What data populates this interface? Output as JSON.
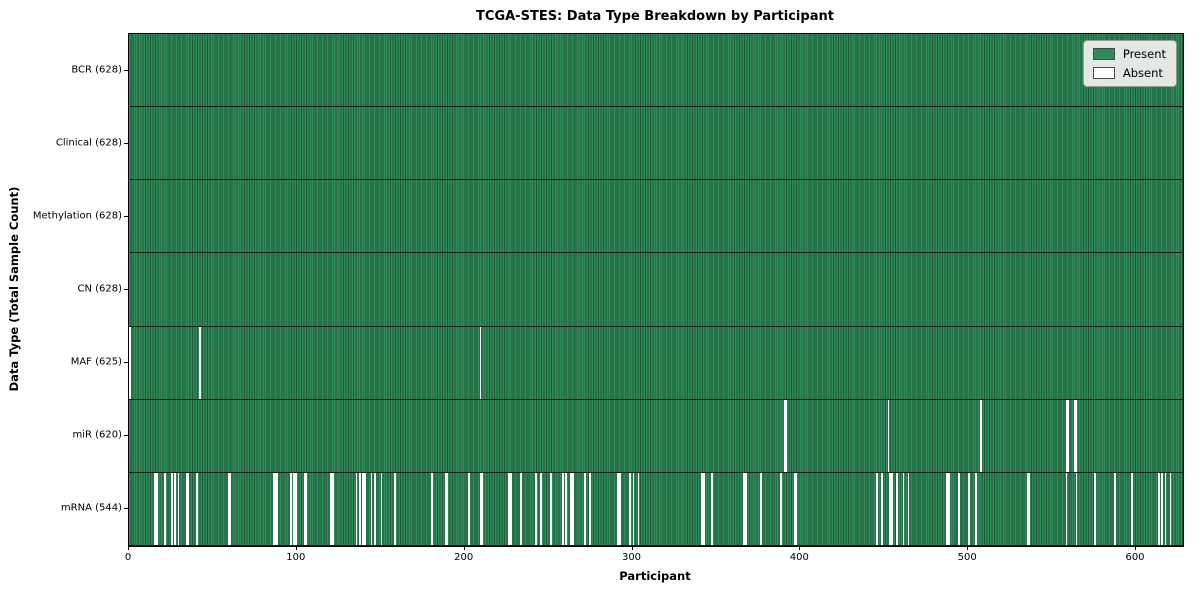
{
  "chart_data": {
    "type": "heatmap",
    "title": "TCGA-STES: Data Type Breakdown by Participant",
    "xlabel": "Participant",
    "ylabel": "Data Type (Total Sample Count)",
    "n_participants": 628,
    "x_ticks": [
      0,
      100,
      200,
      300,
      400,
      500,
      600
    ],
    "grid": false,
    "legend": {
      "position": "upper right",
      "entries": [
        {
          "label": "Present",
          "color": "#2e8b57"
        },
        {
          "label": "Absent",
          "color": "#ffffff"
        }
      ]
    },
    "colors": {
      "present_fill": "#2e8b57",
      "present_edge": "#1e5c39",
      "absent_fill": "#ffffff",
      "row_divider": "#000000",
      "legend_background": "#e4e8e4"
    },
    "rows": [
      {
        "name": "BCR",
        "label": "BCR (628)",
        "present_count": 628,
        "absent_participants": []
      },
      {
        "name": "Clinical",
        "label": "Clinical (628)",
        "present_count": 628,
        "absent_participants": []
      },
      {
        "name": "Methylation",
        "label": "Methylation (628)",
        "present_count": 628,
        "absent_participants": []
      },
      {
        "name": "CN",
        "label": "CN (628)",
        "present_count": 628,
        "absent_participants": []
      },
      {
        "name": "MAF",
        "label": "MAF (625)",
        "present_count": 625,
        "absent_participants": [
          0,
          42,
          209
        ]
      },
      {
        "name": "miR",
        "label": "miR (620)",
        "present_count": 620,
        "absent_participants": [
          390,
          391,
          452,
          507,
          558,
          559,
          563,
          564
        ]
      },
      {
        "name": "mRNA",
        "label": "mRNA (544)",
        "present_count": 544,
        "absent_participants": [
          15,
          16,
          21,
          25,
          27,
          29,
          34,
          35,
          40,
          59,
          60,
          86,
          87,
          88,
          96,
          98,
          99,
          104,
          105,
          120,
          121,
          135,
          137,
          139,
          140,
          144,
          146,
          150,
          158,
          180,
          188,
          189,
          202,
          209,
          210,
          226,
          227,
          233,
          242,
          245,
          251,
          258,
          260,
          263,
          264,
          271,
          274,
          291,
          292,
          298,
          300,
          303,
          341,
          342,
          347,
          366,
          367,
          376,
          388,
          396,
          397,
          445,
          448,
          453,
          454,
          457,
          461,
          464,
          487,
          488,
          494,
          500,
          504,
          535,
          536,
          558,
          564,
          575,
          587,
          597,
          613,
          615,
          617,
          620
        ]
      }
    ]
  }
}
